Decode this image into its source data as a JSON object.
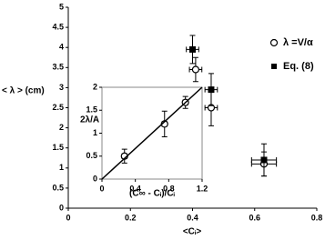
{
  "chart_data": [
    {
      "type": "scatter",
      "xlabel": "<Cᵢ>",
      "ylabel": "< λ > (cm)",
      "xlim": [
        0,
        0.8
      ],
      "xticks": [
        0,
        0.2,
        0.4,
        0.6,
        0.8
      ],
      "ylim": [
        0,
        5
      ],
      "yticks": [
        0,
        0.5,
        1,
        1.5,
        2,
        2.5,
        3,
        3.5,
        4,
        4.5,
        5
      ],
      "legend": "upper right",
      "series": [
        {
          "name": "λ =V/α",
          "color": "#000000",
          "marker": "circle",
          "x": [
            0.41,
            0.46,
            0.63
          ],
          "values": [
            3.45,
            2.5,
            1.1
          ],
          "x_errors": [
            0.02,
            0.02,
            0.04
          ],
          "y_errors": [
            0.3,
            0.45,
            0.3
          ]
        },
        {
          "name": "Eq. (8)",
          "color": "#000000",
          "marker": "square",
          "x": [
            0.4,
            0.46,
            0.63
          ],
          "values": [
            3.95,
            2.95,
            1.2
          ],
          "x_errors": [
            0.02,
            0.02,
            0.04
          ],
          "y_errors": [
            0.35,
            0.4,
            0.4
          ]
        }
      ]
    },
    {
      "type": "scatter",
      "xlabel": "(C∞ - Cᵢ)/Cᵢ",
      "ylabel": "2λ/A",
      "xlim": [
        0,
        1.2
      ],
      "xticks": [
        0,
        0.4,
        0.8,
        1.2
      ],
      "ylim": [
        0,
        2
      ],
      "yticks": [
        0,
        0.5,
        1,
        1.5,
        2
      ],
      "series": [
        {
          "color": "#000000",
          "marker": "circle",
          "x": [
            0.27,
            0.75,
            1.0
          ],
          "values": [
            0.5,
            1.2,
            1.67
          ],
          "x_errors": [
            0.03,
            0.03,
            0.03
          ],
          "y_errors": [
            0.15,
            0.28,
            0.13
          ]
        },
        {
          "color": "#000000",
          "marker": "line",
          "x": [
            0,
            1.2
          ],
          "values": [
            0,
            2
          ]
        }
      ]
    }
  ]
}
